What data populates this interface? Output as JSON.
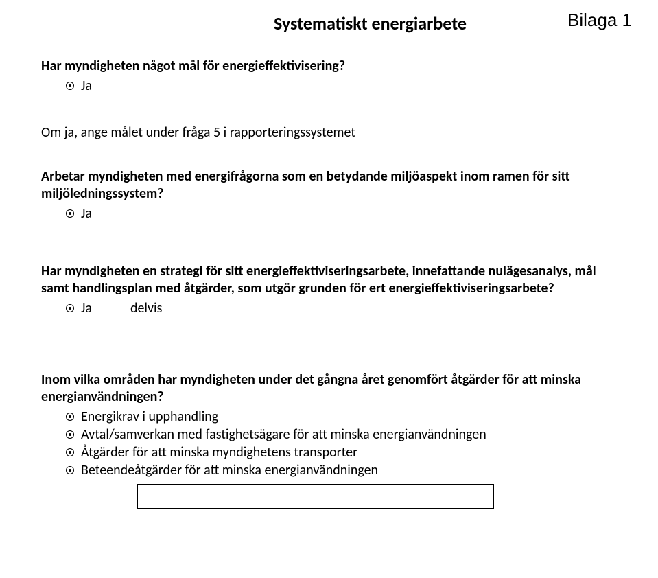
{
  "title": "Systematiskt energiarbete",
  "appendix": "Bilaga 1",
  "q1": {
    "text": "Har myndigheten något mål för energieffektivisering?",
    "answer": "Ja"
  },
  "note1": "Om ja, ange målet under fråga 5 i rapporteringssystemet",
  "q2": {
    "text": "Arbetar myndigheten med energifrågorna som en betydande miljöaspekt inom ramen för sitt miljöledningssystem?",
    "answer": "Ja"
  },
  "q3": {
    "text": "Har myndigheten en strategi för sitt energieffektiviseringsarbete, innefattande nulägesanalys, mål samt handlingsplan med åtgärder, som utgör grunden för ert energieffektiviseringsarbete?",
    "answer1": "Ja",
    "answer2": "delvis"
  },
  "q4": {
    "text": "Inom vilka områden har myndigheten under det gångna året genomfört åtgärder för att minska energianvändningen?",
    "options": [
      "Energikrav i upphandling",
      "Avtal/samverkan med fastighetsägare för att minska energianvändningen",
      "Åtgärder för att minska myndighetens transporter",
      "Beteendeåtgärder för att minska energianvändningen"
    ]
  }
}
